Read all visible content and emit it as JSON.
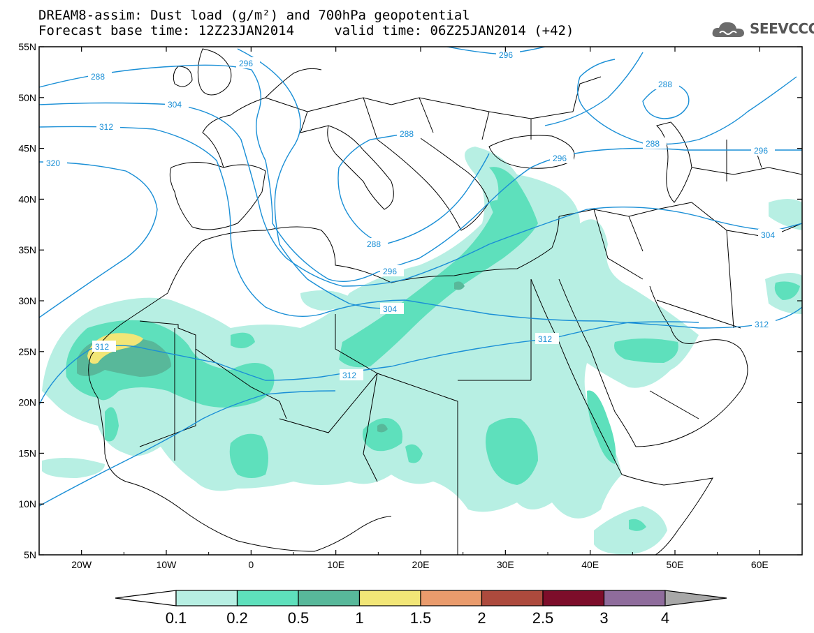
{
  "header": {
    "title_line1": "DREAM8-assim: Dust load (g/m²) and 700hPa geopotential",
    "title_line2": "Forecast base time: 12Z23JAN2014     valid time: 06Z25JAN2014 (+42)"
  },
  "logo": {
    "text": "SEEVCCC",
    "icon": "cloud-logo-icon"
  },
  "map": {
    "type": "contour map",
    "lat_range": [
      5,
      55
    ],
    "lon_range": [
      -25,
      65
    ],
    "lat_ticks": [
      "55N",
      "50N",
      "45N",
      "40N",
      "35N",
      "30N",
      "25N",
      "20N",
      "15N",
      "10N",
      "5N"
    ],
    "lon_ticks": [
      "20W",
      "10W",
      "0",
      "10E",
      "20E",
      "30E",
      "40E",
      "50E",
      "60E"
    ],
    "geopotential_contour_color": "#1a8fd6",
    "geopotential_contour_labels": [
      "296",
      "288",
      "296",
      "304",
      "312",
      "320",
      "288",
      "288",
      "296",
      "304",
      "312",
      "312",
      "312",
      "288",
      "288",
      "296",
      "296",
      "304",
      "312"
    ]
  },
  "legend": {
    "labels": [
      "0.1",
      "0.2",
      "0.5",
      "1",
      "1.5",
      "2",
      "2.5",
      "3",
      "4"
    ],
    "colors": [
      "#ffffff",
      "#b7efe3",
      "#5ee0bc",
      "#58b89a",
      "#f2e677",
      "#ea9b6c",
      "#ad4a3d",
      "#7d0d2a",
      "#8f6c9c",
      "#a8a8a8"
    ]
  }
}
